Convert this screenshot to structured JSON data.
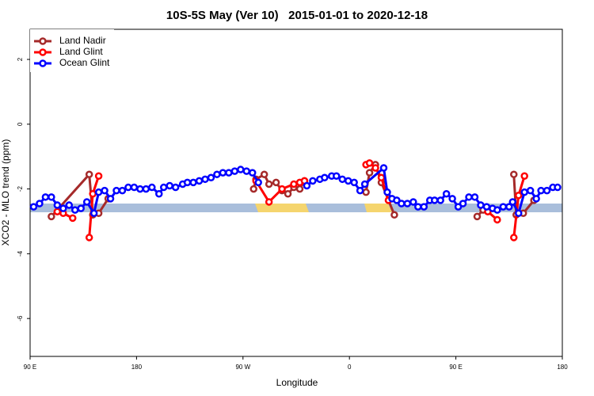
{
  "chart_data": {
    "type": "line",
    "title": "10S-5S May (Ver 10)   2015-01-01 to 2020-12-18",
    "xlabel": "Longitude",
    "ylabel": "XCO2 - MLO trend (ppm)",
    "xlim": [
      90,
      540
    ],
    "ylim": [
      -7.17,
      2.93
    ],
    "xticks": [
      {
        "value": 90,
        "label": "90 E"
      },
      180,
      {
        "value": 270,
        "label": "90 W"
      },
      {
        "value": 360,
        "label": "0"
      },
      {
        "value": 450,
        "label": "90 E"
      },
      {
        "value": 540,
        "label": "180"
      }
    ],
    "yticks": [
      2,
      0,
      -2,
      -4,
      -6
    ],
    "legend": "top-left",
    "series": [
      {
        "name": "Land Nadir",
        "color": "#a52a2a",
        "x": [
          108,
          140,
          143,
          148,
          156,
          null,
          279,
          281,
          288,
          292,
          298,
          303,
          308,
          313,
          318,
          322,
          null,
          374,
          377,
          382,
          387,
          398,
          null,
          468,
          473,
          null,
          499,
          501,
          507,
          516
        ],
        "values": [
          -2.85,
          -1.55,
          -2.8,
          -2.75,
          -2.3,
          null,
          -2.0,
          -1.7,
          -1.55,
          -1.85,
          -1.8,
          -2.05,
          -2.15,
          -1.95,
          -2.0,
          -1.75,
          null,
          -2.1,
          -1.5,
          -1.25,
          -1.8,
          -2.8,
          null,
          -2.85,
          -2.65,
          null,
          -1.55,
          -2.8,
          -2.75,
          -2.35
        ]
      },
      {
        "name": "Land Glint",
        "color": "#ff0000",
        "x": [
          113,
          118,
          126,
          null,
          140,
          143,
          148,
          null,
          281,
          292,
          303,
          313,
          318,
          322,
          null,
          374,
          377,
          382,
          387,
          393,
          null,
          477,
          485,
          null,
          499,
          503,
          508
        ],
        "values": [
          -2.7,
          -2.75,
          -2.9,
          null,
          -3.5,
          -2.15,
          -1.6,
          null,
          -1.75,
          -2.4,
          -2.0,
          -1.85,
          -1.8,
          -1.75,
          null,
          -1.25,
          -1.2,
          -1.35,
          -1.65,
          -2.35,
          null,
          -2.7,
          -2.95,
          null,
          -3.5,
          -2.2,
          -1.6
        ]
      },
      {
        "name": "Ocean Glint",
        "color": "#0000ff",
        "x": [
          93,
          98,
          103,
          108,
          113,
          118,
          123,
          128,
          133,
          138,
          144,
          148,
          153,
          158,
          163,
          168,
          173,
          178,
          183,
          188,
          193,
          199,
          203,
          208,
          213,
          219,
          223,
          228,
          233,
          238,
          243,
          248,
          253,
          258,
          263,
          268,
          273,
          278,
          283,
          null,
          324,
          329,
          335,
          339,
          345,
          349,
          354,
          359,
          364,
          369,
          373,
          389,
          392,
          396,
          400,
          404,
          409,
          414,
          418,
          423,
          428,
          432,
          437,
          442,
          447,
          452,
          456,
          461,
          466,
          471,
          476,
          481,
          485,
          490,
          495,
          498,
          503,
          508,
          513,
          518,
          522,
          527,
          532,
          536
        ],
        "values": [
          -2.55,
          -2.45,
          -2.25,
          -2.25,
          -2.5,
          -2.6,
          -2.5,
          -2.65,
          -2.6,
          -2.4,
          -2.75,
          -2.1,
          -2.05,
          -2.3,
          -2.05,
          -2.05,
          -1.95,
          -1.95,
          -2.0,
          -2.0,
          -1.95,
          -2.15,
          -1.95,
          -1.9,
          -1.95,
          -1.85,
          -1.8,
          -1.8,
          -1.75,
          -1.7,
          -1.65,
          -1.55,
          -1.5,
          -1.5,
          -1.45,
          -1.4,
          -1.45,
          -1.5,
          -1.8,
          null,
          -1.9,
          -1.75,
          -1.7,
          -1.65,
          -1.6,
          -1.6,
          -1.7,
          -1.75,
          -1.8,
          -2.05,
          -1.85,
          -1.35,
          -2.1,
          -2.3,
          -2.35,
          -2.45,
          -2.45,
          -2.4,
          -2.55,
          -2.55,
          -2.35,
          -2.35,
          -2.35,
          -2.15,
          -2.3,
          -2.55,
          -2.45,
          -2.25,
          -2.25,
          -2.5,
          -2.55,
          -2.6,
          -2.65,
          -2.55,
          -2.55,
          -2.4,
          -2.75,
          -2.1,
          -2.05,
          -2.3,
          -2.05,
          -2.05,
          -1.95,
          -1.95
        ]
      }
    ]
  }
}
